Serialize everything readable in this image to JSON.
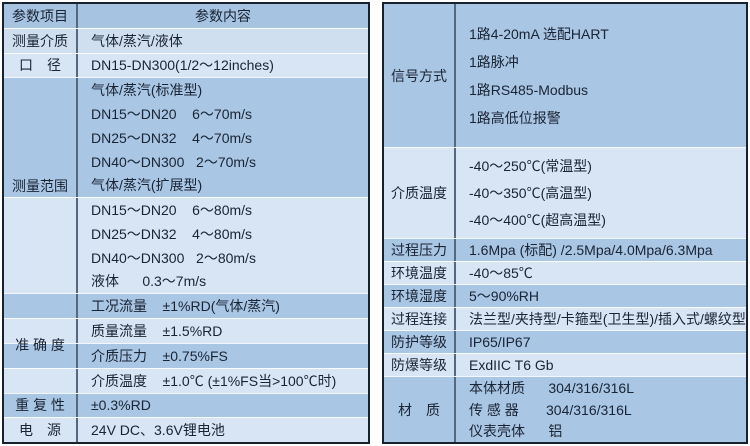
{
  "colors": {
    "band_mid": "#a9c6e5",
    "band_light": "#d7e5f4",
    "band_header": "#a6c3e2",
    "outer_border": "#18222f",
    "column_divider": "#56687d",
    "text": "#1a2433"
  },
  "left": {
    "header_col1": "参数项目",
    "header_col2": "参数内容",
    "medium_label": "测量介质",
    "medium_value": "气体/蒸汽/液体",
    "diameter_label": "口　径",
    "diameter_value": "DN15-DN300(1/2～12inches)",
    "range_label": "测量范围",
    "range_lines": [
      "气体/蒸汽(标准型)",
      "DN15～DN20    6～70m/s",
      "DN25～DN32    4～70m/s",
      "DN40～DN300   2～70m/s",
      "气体/蒸汽(扩展型)",
      "DN15～DN20    6～80m/s",
      "DN25～DN32    4～80m/s",
      "DN40～DN300   2～80m/s",
      "液体      0.3～7m/s"
    ],
    "accuracy_label": "准 确 度",
    "accuracy_lines": [
      "工况流量    ±1%RD(气体/蒸汽)",
      "质量流量    ±1.5%RD",
      "介质压力    ±0.75%FS",
      "介质温度    ±1.0℃ (±1%FS当>100℃时)"
    ],
    "repeat_label": "重 复 性",
    "repeat_value": "±0.3%RD",
    "power_label": "电　源",
    "power_value": "24V DC、3.6V锂电池"
  },
  "right": {
    "signal_label": "信号方式",
    "signal_lines": [
      "1路4-20mA 选配HART",
      "1路脉冲",
      "1路RS485-Modbus",
      "1路高低位报警"
    ],
    "medium_temp_label": "介质温度",
    "medium_temp_lines": [
      "-40～250℃(常温型)",
      "-40～350℃(高温型)",
      "-40～400℃(超高温型)"
    ],
    "process_pressure_label": "过程压力",
    "process_pressure_value": "1.6Mpa (标配) /2.5Mpa/4.0Mpa/6.3Mpa",
    "ambient_temp_label": "环境温度",
    "ambient_temp_value": "-40～85℃",
    "ambient_humidity_label": "环境湿度",
    "ambient_humidity_value": "5～90%RH",
    "process_connection_label": "过程连接",
    "process_connection_value": "法兰型/夹持型/卡箍型(卫生型)/插入式/螺纹型",
    "protection_label": "防护等级",
    "protection_value": "IP65/IP67",
    "explosion_label": "防爆等级",
    "explosion_value": "ExdIIC T6 Gb",
    "material_label": "材　质",
    "material_lines": [
      "本体材质      304/316/316L",
      "传 感 器       304/316/316L",
      "仪表壳体      铝"
    ]
  }
}
